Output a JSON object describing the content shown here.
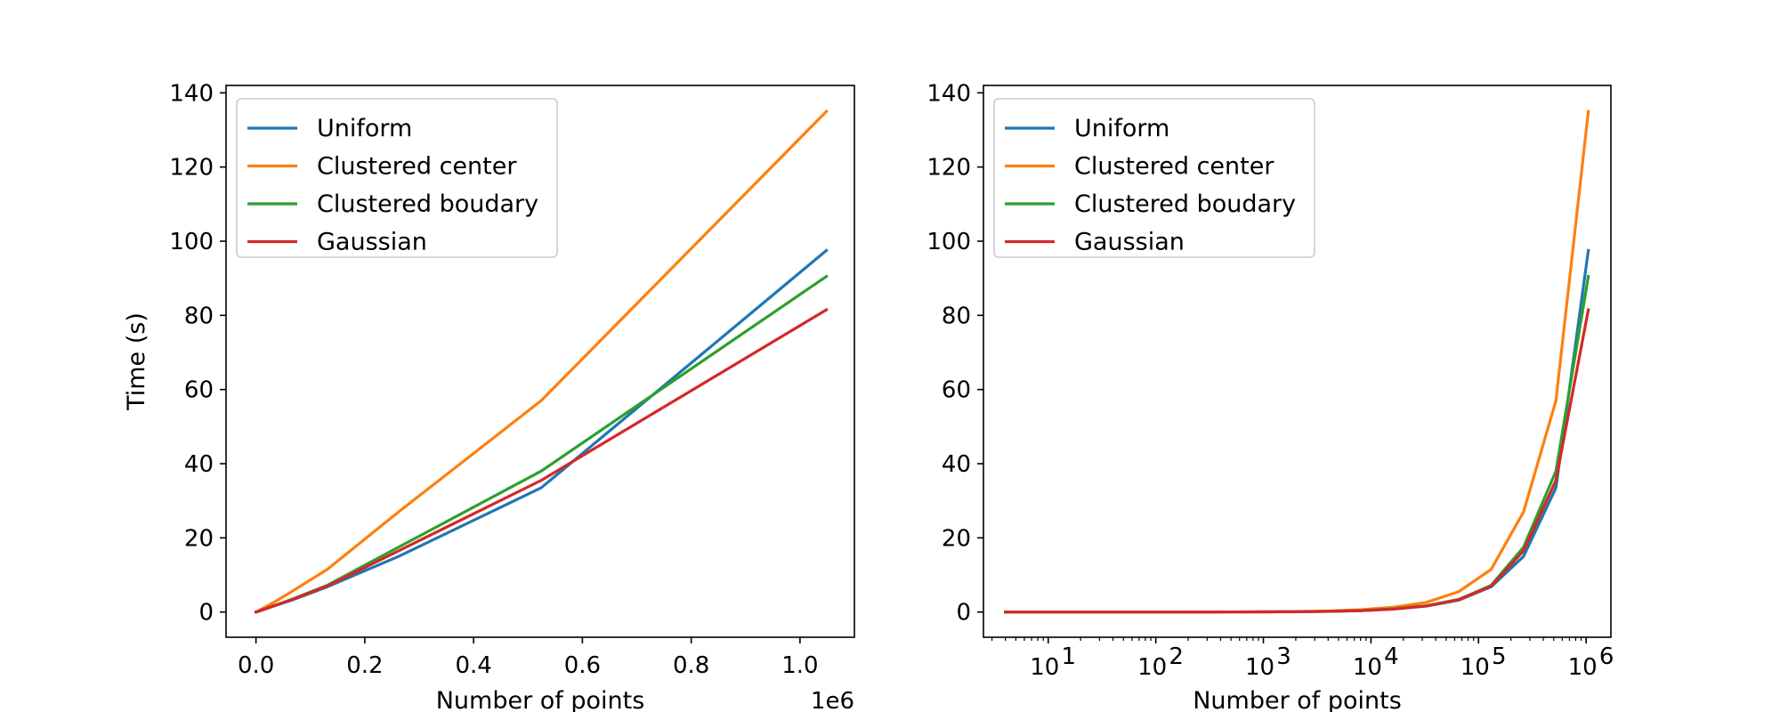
{
  "chart_data": [
    {
      "type": "line",
      "xscale": "linear",
      "xlabel": "Number of points",
      "ylabel": "Time (s)",
      "x_offset_label": "1e6",
      "x_scale_factor": 1000000,
      "xlim": [
        -55000,
        1100000
      ],
      "ylim": [
        -6.8,
        142
      ],
      "xticks": [
        0,
        200000,
        400000,
        600000,
        800000,
        1000000
      ],
      "xtick_labels": [
        "0.0",
        "0.2",
        "0.4",
        "0.6",
        "0.8",
        "1.0"
      ],
      "yticks": [
        0,
        20,
        40,
        60,
        80,
        100,
        120,
        140
      ],
      "ytick_labels": [
        "0",
        "20",
        "40",
        "60",
        "80",
        "100",
        "120",
        "140"
      ],
      "legend_position": "upper-left",
      "grid": false,
      "x": [
        4,
        8,
        16,
        32,
        64,
        128,
        256,
        512,
        1024,
        2048,
        4096,
        8192,
        16384,
        32768,
        65536,
        131072,
        262144,
        524288,
        1048576
      ],
      "series": [
        {
          "name": "Uniform",
          "color": "#1f77b4",
          "values": [
            0,
            0,
            0,
            0,
            0,
            0,
            0.01,
            0.02,
            0.04,
            0.09,
            0.18,
            0.37,
            0.8,
            1.6,
            3.2,
            6.8,
            15,
            33.5,
            97.5
          ]
        },
        {
          "name": "Clustered center",
          "color": "#ff7f0e",
          "values": [
            0,
            0,
            0,
            0,
            0,
            0,
            0.01,
            0.03,
            0.07,
            0.15,
            0.3,
            0.65,
            1.3,
            2.6,
            5.5,
            11.5,
            27,
            57,
            135
          ]
        },
        {
          "name": "Clustered boudary",
          "color": "#2ca02c",
          "values": [
            0,
            0,
            0,
            0,
            0,
            0,
            0.01,
            0.02,
            0.04,
            0.09,
            0.19,
            0.4,
            0.85,
            1.7,
            3.4,
            7.2,
            17.5,
            38,
            90.5
          ]
        },
        {
          "name": "Gaussian",
          "color": "#d62728",
          "values": [
            0,
            0,
            0,
            0,
            0,
            0,
            0.01,
            0.02,
            0.04,
            0.09,
            0.18,
            0.38,
            0.8,
            1.65,
            3.3,
            7.0,
            16.5,
            35.5,
            81.5
          ]
        }
      ]
    },
    {
      "type": "line",
      "xscale": "log",
      "xlabel": "Number of points",
      "ylabel": "",
      "xlim": [
        2.5,
        1700000
      ],
      "ylim": [
        -6.8,
        142
      ],
      "xticks": [
        10,
        100,
        1000,
        10000,
        100000,
        1000000
      ],
      "xtick_labels": [
        [
          "10",
          "1"
        ],
        [
          "10",
          "2"
        ],
        [
          "10",
          "3"
        ],
        [
          "10",
          "4"
        ],
        [
          "10",
          "5"
        ],
        [
          "10",
          "6"
        ]
      ],
      "yticks": [
        0,
        20,
        40,
        60,
        80,
        100,
        120,
        140
      ],
      "ytick_labels": [
        "0",
        "20",
        "40",
        "60",
        "80",
        "100",
        "120",
        "140"
      ],
      "legend_position": "upper-left",
      "grid": false,
      "x": [
        4,
        8,
        16,
        32,
        64,
        128,
        256,
        512,
        1024,
        2048,
        4096,
        8192,
        16384,
        32768,
        65536,
        131072,
        262144,
        524288,
        1048576
      ],
      "series": [
        {
          "name": "Uniform",
          "color": "#1f77b4",
          "values": [
            0,
            0,
            0,
            0,
            0,
            0,
            0.01,
            0.02,
            0.04,
            0.09,
            0.18,
            0.37,
            0.8,
            1.6,
            3.2,
            6.8,
            15,
            33.5,
            97.5
          ]
        },
        {
          "name": "Clustered center",
          "color": "#ff7f0e",
          "values": [
            0,
            0,
            0,
            0,
            0,
            0,
            0.01,
            0.03,
            0.07,
            0.15,
            0.3,
            0.65,
            1.3,
            2.6,
            5.5,
            11.5,
            27,
            57,
            135
          ]
        },
        {
          "name": "Clustered boudary",
          "color": "#2ca02c",
          "values": [
            0,
            0,
            0,
            0,
            0,
            0,
            0.01,
            0.02,
            0.04,
            0.09,
            0.19,
            0.4,
            0.85,
            1.7,
            3.4,
            7.2,
            17.5,
            38,
            90.5
          ]
        },
        {
          "name": "Gaussian",
          "color": "#d62728",
          "values": [
            0,
            0,
            0,
            0,
            0,
            0,
            0.01,
            0.02,
            0.04,
            0.09,
            0.18,
            0.38,
            0.8,
            1.65,
            3.3,
            7.0,
            16.5,
            35.5,
            81.5
          ]
        }
      ]
    }
  ]
}
